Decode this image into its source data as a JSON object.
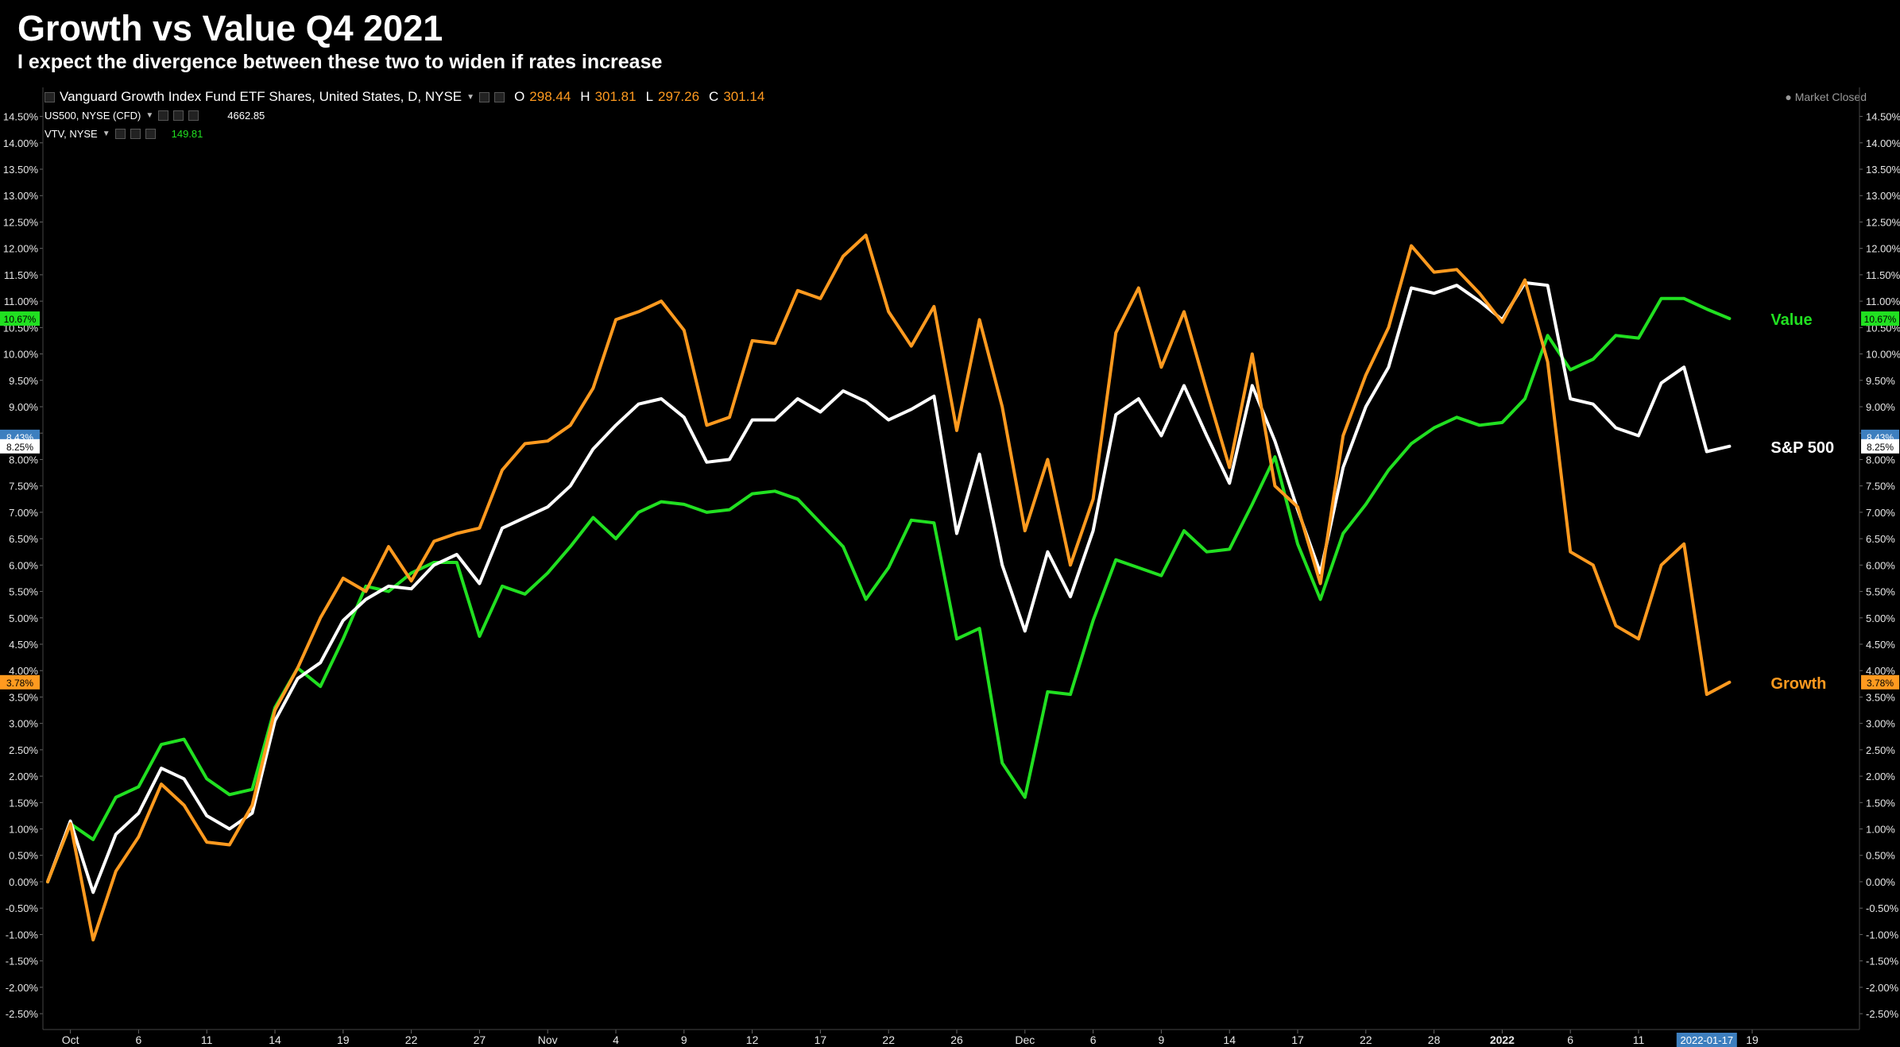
{
  "title": "Growth vs Value Q4 2021",
  "subtitle": "I expect the divergence between these two to widen if rates increase",
  "legend": {
    "main": {
      "name": "Vanguard Growth Index Fund ETF Shares, United States, D, NYSE",
      "open_label": "O",
      "open": "298.44",
      "high_label": "H",
      "high": "301.81",
      "low_label": "L",
      "low": "297.26",
      "close_label": "C",
      "close": "301.14"
    },
    "compare1": {
      "name": "US500, NYSE (CFD)",
      "value": "4662.85"
    },
    "compare2": {
      "name": "VTV, NYSE",
      "value": "149.81"
    }
  },
  "market_status": "● Market Closed",
  "colors": {
    "background": "#000000",
    "growth": "#ff9a1f",
    "value": "#21e021",
    "sp500": "#ffffff",
    "date_badge": "#3d7fbf"
  },
  "chart_data": {
    "type": "line",
    "ylim": [
      -2.8,
      14.9
    ],
    "y_ticks": [
      -2.5,
      -2.0,
      -1.5,
      -1.0,
      -0.5,
      0.0,
      0.5,
      1.0,
      1.5,
      2.0,
      2.5,
      3.0,
      3.5,
      4.0,
      4.5,
      5.0,
      5.5,
      6.0,
      6.5,
      7.0,
      7.5,
      8.0,
      8.5,
      9.0,
      9.5,
      10.0,
      10.5,
      11.0,
      11.5,
      12.0,
      12.5,
      13.0,
      13.5,
      14.0,
      14.5
    ],
    "x_ticks": [
      {
        "i": 1,
        "label": "Oct",
        "bold": false
      },
      {
        "i": 4,
        "label": "6",
        "bold": false
      },
      {
        "i": 7,
        "label": "11",
        "bold": false
      },
      {
        "i": 10,
        "label": "14",
        "bold": false
      },
      {
        "i": 13,
        "label": "19",
        "bold": false
      },
      {
        "i": 16,
        "label": "22",
        "bold": false
      },
      {
        "i": 19,
        "label": "27",
        "bold": false
      },
      {
        "i": 22,
        "label": "Nov",
        "bold": false
      },
      {
        "i": 25,
        "label": "4",
        "bold": false
      },
      {
        "i": 28,
        "label": "9",
        "bold": false
      },
      {
        "i": 31,
        "label": "12",
        "bold": false
      },
      {
        "i": 34,
        "label": "17",
        "bold": false
      },
      {
        "i": 37,
        "label": "22",
        "bold": false
      },
      {
        "i": 40,
        "label": "26",
        "bold": false
      },
      {
        "i": 43,
        "label": "Dec",
        "bold": false
      },
      {
        "i": 46,
        "label": "6",
        "bold": false
      },
      {
        "i": 49,
        "label": "9",
        "bold": false
      },
      {
        "i": 52,
        "label": "14",
        "bold": false
      },
      {
        "i": 55,
        "label": "17",
        "bold": false
      },
      {
        "i": 58,
        "label": "22",
        "bold": false
      },
      {
        "i": 61,
        "label": "28",
        "bold": false
      },
      {
        "i": 64,
        "label": "2022",
        "bold": true
      },
      {
        "i": 67,
        "label": "6",
        "bold": false
      },
      {
        "i": 70,
        "label": "11",
        "bold": false
      },
      {
        "i": 75,
        "label": "19",
        "bold": false
      }
    ],
    "x_count": 76,
    "current_date_label": "2022-01-17",
    "current_date_index": 73,
    "series": [
      {
        "name": "Value",
        "color": "#21e021",
        "last_label": "10.67%",
        "values": [
          0.0,
          1.1,
          0.8,
          1.6,
          1.8,
          2.6,
          2.7,
          1.95,
          1.65,
          1.75,
          3.3,
          4.05,
          3.7,
          4.6,
          5.6,
          5.5,
          5.85,
          6.05,
          6.05,
          4.65,
          5.6,
          5.45,
          5.85,
          6.35,
          6.9,
          6.5,
          7.0,
          7.2,
          7.15,
          7.0,
          7.05,
          7.35,
          7.4,
          7.25,
          6.8,
          6.35,
          5.35,
          5.95,
          6.85,
          6.8,
          4.6,
          4.8,
          2.25,
          1.6,
          3.6,
          3.55,
          4.95,
          6.1,
          5.95,
          5.8,
          6.65,
          6.25,
          6.3,
          7.15,
          8.05,
          6.4,
          5.35,
          6.6,
          7.15,
          7.8,
          8.3,
          8.6,
          8.8,
          8.65,
          8.7,
          9.15,
          10.35,
          9.7,
          9.9,
          10.35,
          10.3,
          11.05,
          11.05,
          10.85,
          10.67
        ]
      },
      {
        "name": "S&P 500",
        "color": "#ffffff",
        "last_label": "8.25%",
        "values": [
          0.0,
          1.15,
          -0.2,
          0.9,
          1.3,
          2.15,
          1.95,
          1.25,
          1.0,
          1.3,
          3.05,
          3.85,
          4.15,
          4.95,
          5.35,
          5.6,
          5.55,
          6.0,
          6.2,
          5.65,
          6.7,
          6.9,
          7.1,
          7.5,
          8.2,
          8.65,
          9.05,
          9.15,
          8.8,
          7.95,
          8.0,
          8.75,
          8.75,
          9.15,
          8.9,
          9.3,
          9.1,
          8.75,
          8.95,
          9.2,
          6.6,
          8.1,
          6.0,
          4.75,
          6.25,
          5.4,
          6.65,
          8.85,
          9.15,
          8.45,
          9.4,
          8.45,
          7.55,
          9.4,
          8.35,
          7.05,
          5.85,
          7.85,
          9.0,
          9.75,
          11.25,
          11.15,
          11.3,
          11.0,
          10.65,
          11.35,
          11.3,
          9.15,
          9.05,
          8.6,
          8.45,
          9.45,
          9.75,
          8.15,
          8.25
        ]
      },
      {
        "name": "Growth",
        "color": "#ff9a1f",
        "last_label": "3.78%",
        "values": [
          0.0,
          1.1,
          -1.1,
          0.2,
          0.85,
          1.85,
          1.45,
          0.75,
          0.7,
          1.45,
          3.25,
          4.05,
          5.0,
          5.75,
          5.5,
          6.35,
          5.7,
          6.45,
          6.6,
          6.7,
          7.8,
          8.3,
          8.35,
          8.65,
          9.35,
          10.65,
          10.8,
          11.0,
          10.45,
          8.65,
          8.8,
          10.25,
          10.2,
          11.2,
          11.05,
          11.85,
          12.25,
          10.8,
          10.15,
          10.9,
          8.55,
          10.65,
          9.0,
          6.65,
          8.0,
          6.0,
          7.25,
          10.4,
          11.25,
          9.75,
          10.8,
          9.3,
          7.85,
          10.0,
          7.5,
          7.1,
          5.65,
          8.45,
          9.6,
          10.5,
          12.05,
          11.55,
          11.6,
          11.15,
          10.6,
          11.4,
          9.85,
          6.25,
          6.0,
          4.85,
          4.6,
          6.0,
          6.4,
          3.55,
          3.78
        ]
      }
    ],
    "price_badges": [
      {
        "value": 10.67,
        "label": "10.67%",
        "color": "#21e021",
        "text_color": "#000000"
      },
      {
        "value": 8.43,
        "label": "8.43%",
        "color": "#3d7fbf",
        "text_color": "#ffffff"
      },
      {
        "value": 8.25,
        "label": "8.25%",
        "color": "#ffffff",
        "text_color": "#000000"
      },
      {
        "value": 3.78,
        "label": "3.78%",
        "color": "#ff9a1f",
        "text_color": "#000000"
      }
    ]
  }
}
